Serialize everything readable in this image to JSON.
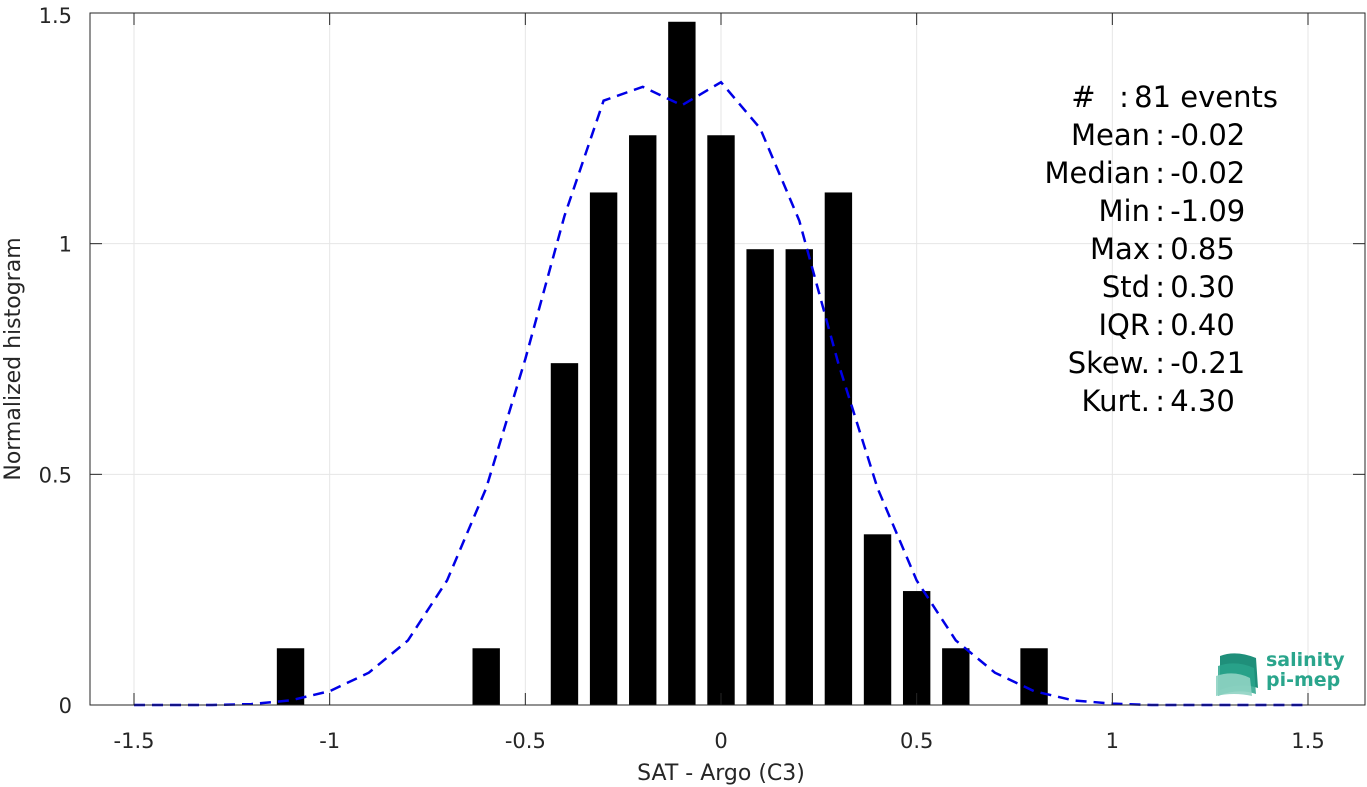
{
  "chart_data": {
    "type": "bar",
    "xlabel": "SAT - Argo (C3)",
    "ylabel": "Normalized histogram",
    "xlim": [
      -1.5,
      1.5
    ],
    "ylim": [
      0,
      1.5
    ],
    "xticks": [
      -1.5,
      -1,
      -0.5,
      0,
      0.5,
      1,
      1.5
    ],
    "xtick_labels": [
      "-1.5",
      "-1",
      "-0.5",
      "0",
      "0.5",
      "1",
      "1.5"
    ],
    "yticks": [
      0,
      0.5,
      1,
      1.5
    ],
    "ytick_labels": [
      "0",
      "0.5",
      "1",
      "1.5"
    ],
    "grid": true,
    "bar_width": 0.07,
    "bar_color": "#000000",
    "bars": [
      {
        "x": -1.1,
        "y": 0.123
      },
      {
        "x": -0.6,
        "y": 0.123
      },
      {
        "x": -0.4,
        "y": 0.741
      },
      {
        "x": -0.3,
        "y": 1.111
      },
      {
        "x": -0.2,
        "y": 1.235
      },
      {
        "x": -0.1,
        "y": 1.481
      },
      {
        "x": 0.0,
        "y": 1.235
      },
      {
        "x": 0.1,
        "y": 0.988
      },
      {
        "x": 0.2,
        "y": 0.988
      },
      {
        "x": 0.3,
        "y": 1.111
      },
      {
        "x": 0.4,
        "y": 0.37
      },
      {
        "x": 0.5,
        "y": 0.247
      },
      {
        "x": 0.6,
        "y": 0.123
      },
      {
        "x": 0.8,
        "y": 0.123
      }
    ],
    "fit_line": {
      "style": "dashed",
      "color": "#0000e6",
      "x": [
        -1.5,
        -1.4,
        -1.3,
        -1.2,
        -1.1,
        -1.0,
        -0.9,
        -0.8,
        -0.7,
        -0.6,
        -0.5,
        -0.4,
        -0.3,
        -0.2,
        -0.1,
        0.0,
        0.1,
        0.2,
        0.3,
        0.4,
        0.5,
        0.6,
        0.7,
        0.8,
        0.9,
        1.0,
        1.1,
        1.2,
        1.3,
        1.4,
        1.5
      ],
      "y": [
        0.0,
        0.0,
        0.0,
        0.002,
        0.01,
        0.03,
        0.07,
        0.14,
        0.27,
        0.47,
        0.75,
        1.06,
        1.31,
        1.34,
        1.3,
        1.35,
        1.25,
        1.05,
        0.74,
        0.47,
        0.27,
        0.14,
        0.07,
        0.03,
        0.01,
        0.003,
        0.0,
        0.0,
        0.0,
        0.0,
        0.0
      ]
    }
  },
  "stats": [
    {
      "label": "#  ",
      "value": "81 events"
    },
    {
      "label": "Mean",
      "value": "-0.02"
    },
    {
      "label": "Median",
      "value": "-0.02"
    },
    {
      "label": "Min",
      "value": "-1.09"
    },
    {
      "label": "Max",
      "value": "0.85"
    },
    {
      "label": "Std",
      "value": "0.30"
    },
    {
      "label": "IQR",
      "value": "0.40"
    },
    {
      "label": "Skew.",
      "value": "-0.21"
    },
    {
      "label": "Kurt.",
      "value": "4.30"
    }
  ],
  "logo": {
    "line1": "salinity",
    "line2": "pi-mep",
    "color": "#2aa58c"
  }
}
